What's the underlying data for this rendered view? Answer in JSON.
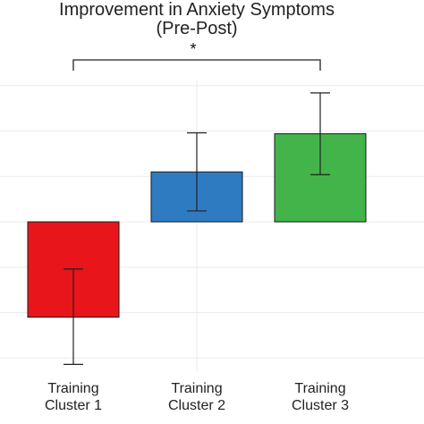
{
  "chart_data": {
    "type": "bar",
    "title": "Improvement in Anxiety Symptoms",
    "subtitle": "(Pre-Post)",
    "xlabel": "",
    "ylabel": "",
    "categories": [
      [
        "Training",
        "Cluster 1"
      ],
      [
        "Training",
        "Cluster 2"
      ],
      [
        "Training",
        "Cluster 3"
      ]
    ],
    "values": [
      -1.05,
      0.55,
      0.97
    ],
    "error_low": [
      -1.57,
      0.12,
      0.52
    ],
    "error_high": [
      -0.52,
      0.98,
      1.42
    ],
    "colors": [
      "#e8151b",
      "#2f7bc1",
      "#43b449"
    ],
    "ylim": [
      -1.6,
      1.5
    ],
    "grid": true,
    "significance": {
      "from": 0,
      "to": 2,
      "label": "*"
    }
  }
}
